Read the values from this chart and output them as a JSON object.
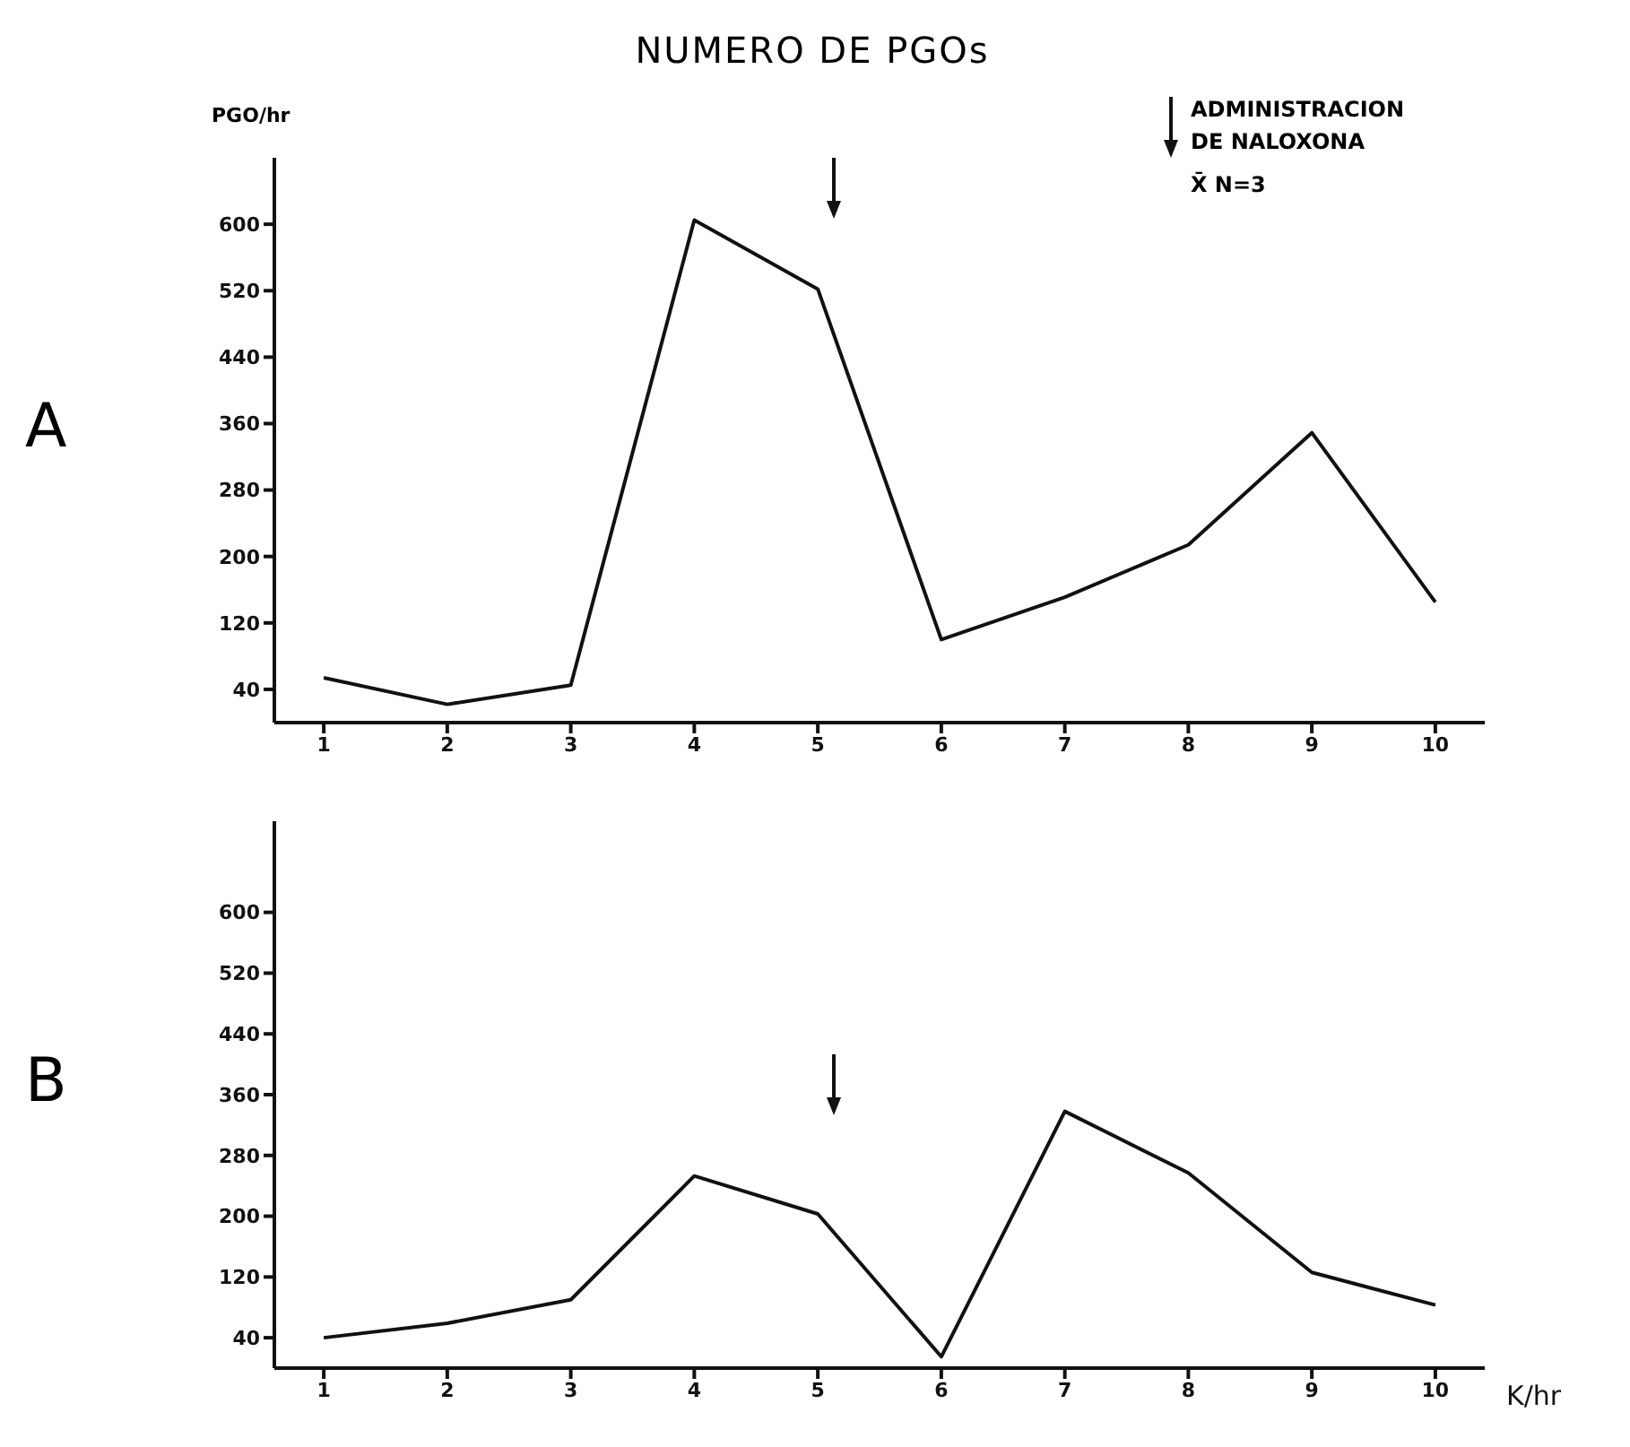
{
  "chart_data": [
    {
      "type": "line",
      "title": "NUMERO DE PGOs",
      "ylabel": "PGO/hr",
      "x": [
        1,
        2,
        3,
        4,
        5,
        6,
        7,
        8,
        9,
        10
      ],
      "series": [
        {
          "color": "#111111",
          "values": [
            54,
            22,
            45,
            605,
            522,
            100,
            151,
            214,
            349,
            145
          ]
        }
      ],
      "xlim": [
        0.6,
        10.4
      ],
      "xticks": [
        1,
        2,
        3,
        4,
        5,
        6,
        7,
        8,
        9,
        10
      ],
      "ylim": [
        0,
        680
      ],
      "yticks": [
        40,
        120,
        200,
        280,
        360,
        440,
        520,
        600
      ],
      "annotations": [
        "A",
        "ADMINISTRACION DE NALOXONA",
        "X̄  N=3"
      ]
    },
    {
      "type": "line",
      "xlabel": "K/hr",
      "x": [
        1,
        2,
        3,
        4,
        5,
        6,
        7,
        8,
        9,
        10
      ],
      "series": [
        {
          "color": "#111111",
          "values": [
            40,
            59,
            90,
            253,
            203,
            15,
            338,
            257,
            126,
            83
          ]
        }
      ],
      "xlim": [
        0.6,
        10.4
      ],
      "xticks": [
        1,
        2,
        3,
        4,
        5,
        6,
        7,
        8,
        9,
        10
      ],
      "ylim": [
        0,
        720
      ],
      "yticks": [
        40,
        120,
        200,
        280,
        360,
        440,
        520,
        600
      ],
      "annotations": [
        "B"
      ]
    }
  ]
}
